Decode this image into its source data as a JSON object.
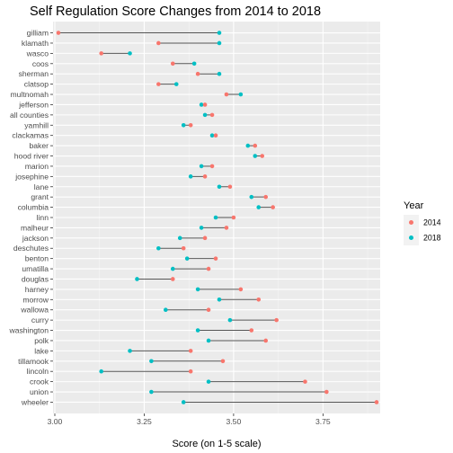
{
  "chart_data": {
    "type": "dumbbell",
    "title": "Self Regulation Score Changes from 2014 to 2018",
    "xlabel": "Score (on 1-5 scale)",
    "ylabel": "",
    "xlim": [
      2.995,
      3.91
    ],
    "x_ticks": [
      "3.00",
      "3.25",
      "3.50",
      "3.75"
    ],
    "x_tick_values": [
      3.0,
      3.25,
      3.5,
      3.75
    ],
    "grid": true,
    "legend": {
      "title": "Year",
      "position": "right",
      "entries": [
        {
          "label": "2014",
          "color": "#F8766D"
        },
        {
          "label": "2018",
          "color": "#00BFC4"
        }
      ]
    },
    "categories": [
      "gilliam",
      "klamath",
      "wasco",
      "coos",
      "sherman",
      "clatsop",
      "multnomah",
      "jefferson",
      "all counties",
      "yamhill",
      "clackamas",
      "baker",
      "hood river",
      "marion",
      "josephine",
      "lane",
      "grant",
      "columbia",
      "linn",
      "malheur",
      "jackson",
      "deschutes",
      "benton",
      "umatilla",
      "douglas",
      "harney",
      "morrow",
      "wallowa",
      "curry",
      "washington",
      "polk",
      "lake",
      "tillamook",
      "lincoln",
      "crook",
      "union",
      "wheeler"
    ],
    "series": [
      {
        "name": "2014",
        "color": "#F8766D",
        "values": [
          3.01,
          3.29,
          3.13,
          3.33,
          3.4,
          3.29,
          3.48,
          3.42,
          3.44,
          3.38,
          3.45,
          3.56,
          3.58,
          3.44,
          3.42,
          3.49,
          3.59,
          3.61,
          3.5,
          3.48,
          3.42,
          3.36,
          3.45,
          3.43,
          3.33,
          3.52,
          3.57,
          3.43,
          3.62,
          3.55,
          3.59,
          3.38,
          3.47,
          3.38,
          3.7,
          3.76,
          3.9
        ]
      },
      {
        "name": "2018",
        "color": "#00BFC4",
        "values": [
          3.46,
          3.46,
          3.21,
          3.39,
          3.46,
          3.34,
          3.52,
          3.41,
          3.42,
          3.36,
          3.44,
          3.54,
          3.56,
          3.41,
          3.38,
          3.46,
          3.55,
          3.57,
          3.45,
          3.41,
          3.35,
          3.29,
          3.37,
          3.33,
          3.23,
          3.4,
          3.46,
          3.31,
          3.49,
          3.4,
          3.43,
          3.21,
          3.27,
          3.13,
          3.43,
          3.27,
          3.36
        ]
      }
    ]
  }
}
